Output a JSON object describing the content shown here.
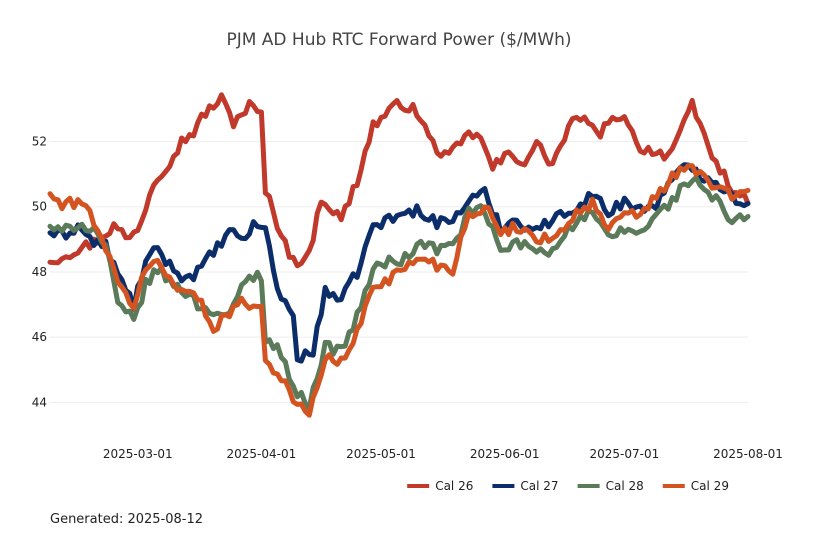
{
  "chart_data": {
    "type": "line",
    "title": "PJM AD Hub RTC Forward Power ($/MWh)",
    "xlabel": "",
    "ylabel": "",
    "x_start": "2025-02-07",
    "x_step_days": 1,
    "xlim": [
      "2025-02-07",
      "2025-08-01"
    ],
    "ylim": [
      43,
      54.5
    ],
    "y_ticks": [
      44,
      46,
      48,
      50,
      52
    ],
    "x_ticks": [
      "2025-03-01",
      "2025-04-01",
      "2025-05-01",
      "2025-06-01",
      "2025-07-01",
      "2025-08-01"
    ],
    "grid": true,
    "legend_position": "bottom-right",
    "series": [
      {
        "name": "Cal 26",
        "color": "#c0392b",
        "anchors": [
          [
            "2025-02-07",
            48.3
          ],
          [
            "2025-02-10",
            48.5
          ],
          [
            "2025-02-14",
            48.7
          ],
          [
            "2025-02-18",
            48.9
          ],
          [
            "2025-02-23",
            49.4
          ],
          [
            "2025-02-27",
            49.0
          ],
          [
            "2025-03-02",
            49.6
          ],
          [
            "2025-03-05",
            50.8
          ],
          [
            "2025-03-09",
            51.4
          ],
          [
            "2025-03-12",
            52.0
          ],
          [
            "2025-03-15",
            52.3
          ],
          [
            "2025-03-18",
            52.9
          ],
          [
            "2025-03-22",
            53.3
          ],
          [
            "2025-03-25",
            52.6
          ],
          [
            "2025-03-29",
            53.1
          ],
          [
            "2025-04-01",
            52.8
          ],
          [
            "2025-04-02",
            50.5
          ],
          [
            "2025-04-05",
            49.5
          ],
          [
            "2025-04-09",
            48.3
          ],
          [
            "2025-04-13",
            48.5
          ],
          [
            "2025-04-16",
            50.3
          ],
          [
            "2025-04-21",
            49.6
          ],
          [
            "2025-04-25",
            50.8
          ],
          [
            "2025-04-29",
            52.5
          ],
          [
            "2025-05-03",
            52.9
          ],
          [
            "2025-05-06",
            53.2
          ],
          [
            "2025-05-10",
            52.9
          ],
          [
            "2025-05-14",
            51.9
          ],
          [
            "2025-05-18",
            51.5
          ],
          [
            "2025-05-22",
            52.1
          ],
          [
            "2025-05-25",
            52.3
          ],
          [
            "2025-05-29",
            51.2
          ],
          [
            "2025-06-02",
            51.6
          ],
          [
            "2025-06-06",
            51.4
          ],
          [
            "2025-06-09",
            51.9
          ],
          [
            "2025-06-13",
            51.3
          ],
          [
            "2025-06-17",
            52.4
          ],
          [
            "2025-06-20",
            52.8
          ],
          [
            "2025-06-24",
            52.2
          ],
          [
            "2025-06-28",
            52.6
          ],
          [
            "2025-07-01",
            52.9
          ],
          [
            "2025-07-04",
            51.9
          ],
          [
            "2025-07-08",
            51.7
          ],
          [
            "2025-07-12",
            51.6
          ],
          [
            "2025-07-15",
            52.2
          ],
          [
            "2025-07-18",
            53.1
          ],
          [
            "2025-07-21",
            52.2
          ],
          [
            "2025-07-24",
            51.3
          ],
          [
            "2025-07-28",
            50.6
          ],
          [
            "2025-08-01",
            50.1
          ]
        ]
      },
      {
        "name": "Cal 27",
        "color": "#0b2e6b",
        "anchors": [
          [
            "2025-02-07",
            49.2
          ],
          [
            "2025-02-10",
            49.1
          ],
          [
            "2025-02-14",
            49.4
          ],
          [
            "2025-02-18",
            48.9
          ],
          [
            "2025-02-21",
            48.8
          ],
          [
            "2025-02-24",
            47.9
          ],
          [
            "2025-02-28",
            47.0
          ],
          [
            "2025-03-03",
            48.3
          ],
          [
            "2025-03-06",
            48.7
          ],
          [
            "2025-03-09",
            48.2
          ],
          [
            "2025-03-13",
            47.8
          ],
          [
            "2025-03-16",
            48.0
          ],
          [
            "2025-03-20",
            48.6
          ],
          [
            "2025-03-24",
            49.2
          ],
          [
            "2025-03-27",
            49.0
          ],
          [
            "2025-03-31",
            49.5
          ],
          [
            "2025-04-02",
            49.3
          ],
          [
            "2025-04-05",
            47.5
          ],
          [
            "2025-04-09",
            46.6
          ],
          [
            "2025-04-10",
            45.4
          ],
          [
            "2025-04-14",
            45.5
          ],
          [
            "2025-04-17",
            47.5
          ],
          [
            "2025-04-21",
            47.1
          ],
          [
            "2025-04-25",
            48.0
          ],
          [
            "2025-04-29",
            49.4
          ],
          [
            "2025-05-03",
            49.6
          ],
          [
            "2025-05-07",
            49.8
          ],
          [
            "2025-05-11",
            49.9
          ],
          [
            "2025-05-15",
            49.5
          ],
          [
            "2025-05-19",
            49.6
          ],
          [
            "2025-05-23",
            50.2
          ],
          [
            "2025-05-27",
            50.4
          ],
          [
            "2025-05-31",
            49.4
          ],
          [
            "2025-06-04",
            49.6
          ],
          [
            "2025-06-08",
            49.3
          ],
          [
            "2025-06-12",
            49.5
          ],
          [
            "2025-06-16",
            49.8
          ],
          [
            "2025-06-20",
            50.1
          ],
          [
            "2025-06-23",
            50.4
          ],
          [
            "2025-06-27",
            49.8
          ],
          [
            "2025-07-01",
            50.2
          ],
          [
            "2025-07-05",
            49.9
          ],
          [
            "2025-07-09",
            50.1
          ],
          [
            "2025-07-13",
            50.8
          ],
          [
            "2025-07-17",
            51.3
          ],
          [
            "2025-07-20",
            51.0
          ],
          [
            "2025-07-24",
            50.8
          ],
          [
            "2025-07-28",
            50.3
          ],
          [
            "2025-08-01",
            50.1
          ]
        ]
      },
      {
        "name": "Cal 28",
        "color": "#5a7a5a",
        "anchors": [
          [
            "2025-02-07",
            49.4
          ],
          [
            "2025-02-10",
            49.2
          ],
          [
            "2025-02-14",
            49.5
          ],
          [
            "2025-02-18",
            49.3
          ],
          [
            "2025-02-21",
            48.8
          ],
          [
            "2025-02-24",
            47.0
          ],
          [
            "2025-02-28",
            46.5
          ],
          [
            "2025-03-03",
            47.6
          ],
          [
            "2025-03-06",
            48.1
          ],
          [
            "2025-03-09",
            47.7
          ],
          [
            "2025-03-13",
            47.4
          ],
          [
            "2025-03-16",
            47.0
          ],
          [
            "2025-03-20",
            46.8
          ],
          [
            "2025-03-24",
            46.6
          ],
          [
            "2025-03-28",
            47.8
          ],
          [
            "2025-04-01",
            47.9
          ],
          [
            "2025-04-02",
            46.0
          ],
          [
            "2025-04-06",
            45.5
          ],
          [
            "2025-04-10",
            44.2
          ],
          [
            "2025-04-13",
            44.0
          ],
          [
            "2025-04-17",
            45.7
          ],
          [
            "2025-04-21",
            45.6
          ],
          [
            "2025-04-25",
            46.6
          ],
          [
            "2025-04-29",
            48.1
          ],
          [
            "2025-05-03",
            48.3
          ],
          [
            "2025-05-07",
            48.4
          ],
          [
            "2025-05-11",
            48.9
          ],
          [
            "2025-05-15",
            48.7
          ],
          [
            "2025-05-19",
            48.8
          ],
          [
            "2025-05-23",
            49.8
          ],
          [
            "2025-05-27",
            49.9
          ],
          [
            "2025-05-31",
            48.6
          ],
          [
            "2025-06-04",
            48.9
          ],
          [
            "2025-06-08",
            48.7
          ],
          [
            "2025-06-12",
            48.6
          ],
          [
            "2025-06-16",
            49.2
          ],
          [
            "2025-06-20",
            49.6
          ],
          [
            "2025-06-23",
            49.8
          ],
          [
            "2025-06-27",
            49.0
          ],
          [
            "2025-07-01",
            49.3
          ],
          [
            "2025-07-05",
            49.2
          ],
          [
            "2025-07-09",
            49.7
          ],
          [
            "2025-07-13",
            50.2
          ],
          [
            "2025-07-17",
            50.8
          ],
          [
            "2025-07-20",
            50.7
          ],
          [
            "2025-07-24",
            50.2
          ],
          [
            "2025-07-28",
            49.5
          ],
          [
            "2025-08-01",
            49.7
          ]
        ]
      },
      {
        "name": "Cal 29",
        "color": "#d35420",
        "anchors": [
          [
            "2025-02-07",
            50.4
          ],
          [
            "2025-02-10",
            50.0
          ],
          [
            "2025-02-14",
            50.2
          ],
          [
            "2025-02-17",
            49.8
          ],
          [
            "2025-02-20",
            49.1
          ],
          [
            "2025-02-24",
            47.6
          ],
          [
            "2025-02-28",
            47.0
          ],
          [
            "2025-03-03",
            48.1
          ],
          [
            "2025-03-06",
            48.3
          ],
          [
            "2025-03-09",
            47.8
          ],
          [
            "2025-03-13",
            47.4
          ],
          [
            "2025-03-16",
            47.2
          ],
          [
            "2025-03-20",
            46.3
          ],
          [
            "2025-03-24",
            46.8
          ],
          [
            "2025-03-28",
            47.1
          ],
          [
            "2025-04-01",
            46.9
          ],
          [
            "2025-04-02",
            45.3
          ],
          [
            "2025-04-06",
            44.8
          ],
          [
            "2025-04-10",
            43.9
          ],
          [
            "2025-04-13",
            43.6
          ],
          [
            "2025-04-17",
            45.4
          ],
          [
            "2025-04-21",
            45.2
          ],
          [
            "2025-04-25",
            46.1
          ],
          [
            "2025-04-29",
            47.6
          ],
          [
            "2025-05-03",
            47.8
          ],
          [
            "2025-05-07",
            48.1
          ],
          [
            "2025-05-11",
            48.5
          ],
          [
            "2025-05-15",
            48.2
          ],
          [
            "2025-05-19",
            48.1
          ],
          [
            "2025-05-23",
            49.8
          ],
          [
            "2025-05-27",
            50.0
          ],
          [
            "2025-05-31",
            49.2
          ],
          [
            "2025-06-04",
            49.4
          ],
          [
            "2025-06-08",
            49.1
          ],
          [
            "2025-06-12",
            49.0
          ],
          [
            "2025-06-16",
            49.4
          ],
          [
            "2025-06-20",
            49.9
          ],
          [
            "2025-06-23",
            50.1
          ],
          [
            "2025-06-27",
            49.3
          ],
          [
            "2025-07-01",
            49.7
          ],
          [
            "2025-07-05",
            49.8
          ],
          [
            "2025-07-09",
            50.3
          ],
          [
            "2025-07-13",
            50.9
          ],
          [
            "2025-07-17",
            51.2
          ],
          [
            "2025-07-20",
            51.0
          ],
          [
            "2025-07-24",
            50.6
          ],
          [
            "2025-07-28",
            50.3
          ],
          [
            "2025-08-01",
            50.5
          ]
        ]
      }
    ]
  },
  "footer": {
    "generated": "Generated: 2025-08-12"
  }
}
